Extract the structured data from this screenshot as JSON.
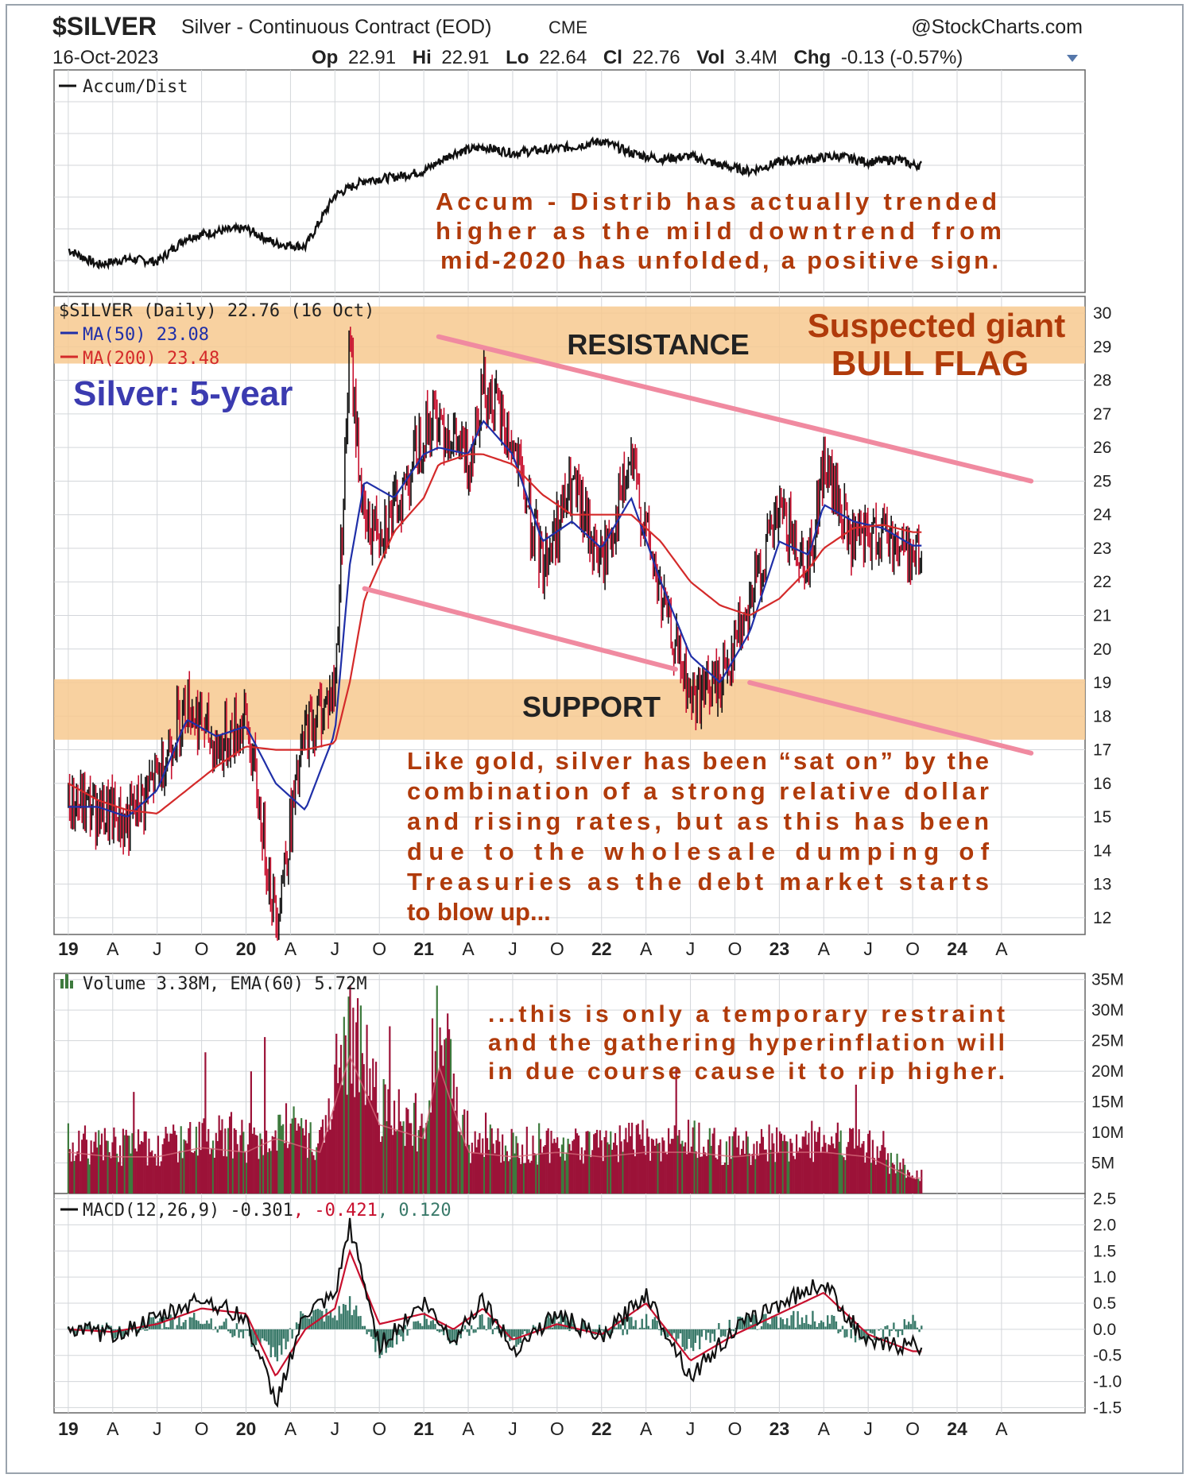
{
  "header": {
    "symbol": "$SILVER",
    "name": "Silver - Continuous Contract (EOD)",
    "exchange": "CME",
    "source": "@StockCharts.com",
    "date": "16-Oct-2023",
    "open_label": "Op",
    "open": "22.91",
    "high_label": "Hi",
    "high": "22.91",
    "low_label": "Lo",
    "low": "22.64",
    "close_label": "Cl",
    "close": "22.76",
    "vol_label": "Vol",
    "vol": "3.4M",
    "chg_label": "Chg",
    "chg": "-0.13 (-0.57%)"
  },
  "panels": {
    "ad_legend": "Accum/Dist",
    "price_legend": "$SILVER (Daily) 22.76 (16 Oct)",
    "ma50_legend": "MA(50) 23.08",
    "ma200_legend": "MA(200) 23.48",
    "volume_legend": "Volume 3.38M, EMA(60) 5.72M",
    "macd_legend_a": "MACD(12,26,9) -0.301",
    "macd_legend_b": ", -0.421",
    "macd_legend_c": ", 0.120"
  },
  "annotations": {
    "ad_note": [
      "Accum - Distrib has actually trended",
      "higher as the mild downtrend from",
      "mid-2020 has unfolded, a positive sign."
    ],
    "resistance": "RESISTANCE",
    "flag_1": "Suspected giant",
    "flag_2": "BULL FLAG",
    "title_5yr": "Silver: 5-year",
    "support": "SUPPORT",
    "gold_note": [
      "Like gold, silver has been “sat on” by the",
      "combination of a strong relative dollar",
      "and rising rates, but as this has been",
      "due to the wholesale dumping of",
      "Treasuries as the debt market starts",
      "to blow up..."
    ],
    "volume_note": [
      "...this is only a temporary restraint",
      "and the gathering hyperinflation will",
      "in due course cause it to rip higher."
    ]
  },
  "colors": {
    "price_up": "#111111",
    "price_down": "#c8102e",
    "ma50": "#1f2fa8",
    "ma200": "#d42a2a",
    "zone": "#f7c98f",
    "channel": "#f08aa0",
    "volume": "#9c1238",
    "volume_up": "#3d7a3d",
    "macd_hist": "#3a7a6a",
    "annotation": "#b03a0a",
    "title_blue": "#3b3bb0"
  },
  "chart_data": [
    {
      "type": "line",
      "name": "Accum/Dist",
      "title": "Accum/Dist",
      "x": [
        "2019-01",
        "2019-03",
        "2019-05",
        "2019-07",
        "2019-09",
        "2019-11",
        "2020-01",
        "2020-03",
        "2020-05",
        "2020-07",
        "2020-09",
        "2020-11",
        "2021-01",
        "2021-03",
        "2021-05",
        "2021-07",
        "2021-09",
        "2021-11",
        "2022-01",
        "2022-03",
        "2022-05",
        "2022-07",
        "2022-09",
        "2022-11",
        "2023-01",
        "2023-03",
        "2023-05",
        "2023-07",
        "2023-09",
        "2023-10"
      ],
      "values": [
        22,
        12,
        16,
        14,
        30,
        34,
        36,
        26,
        24,
        58,
        68,
        70,
        74,
        86,
        90,
        86,
        88,
        90,
        94,
        86,
        82,
        84,
        78,
        74,
        80,
        82,
        84,
        80,
        82,
        78
      ],
      "scale": "relative 0-100 (no axis printed)"
    },
    {
      "type": "line",
      "title": "$SILVER (Daily) 22.76 (16 Oct)",
      "x": [
        "2019-01",
        "2019-03",
        "2019-05",
        "2019-07",
        "2019-09",
        "2019-11",
        "2020-01",
        "2020-03",
        "2020-05",
        "2020-07",
        "2020-08",
        "2020-09",
        "2020-11",
        "2021-01",
        "2021-02",
        "2021-04",
        "2021-05",
        "2021-07",
        "2021-09",
        "2021-11",
        "2022-01",
        "2022-03",
        "2022-05",
        "2022-07",
        "2022-09",
        "2022-11",
        "2023-01",
        "2023-03",
        "2023-04",
        "2023-06",
        "2023-08",
        "2023-10"
      ],
      "series": [
        {
          "name": "$SILVER",
          "values": [
            15.5,
            15.2,
            14.8,
            16.2,
            18.5,
            17.0,
            17.9,
            12.0,
            17.5,
            18.8,
            29.0,
            23.5,
            24.0,
            26.5,
            27.0,
            25.5,
            28.0,
            26.0,
            22.5,
            24.8,
            22.5,
            25.5,
            21.5,
            18.5,
            19.0,
            21.5,
            24.0,
            22.5,
            25.5,
            23.0,
            23.5,
            22.8
          ]
        },
        {
          "name": "MA(50)",
          "values": [
            15.3,
            15.3,
            15.0,
            15.8,
            17.9,
            17.4,
            17.7,
            16.0,
            15.2,
            17.5,
            22.5,
            25.0,
            24.5,
            25.8,
            26.0,
            25.8,
            26.8,
            25.8,
            23.2,
            23.8,
            23.0,
            24.5,
            22.0,
            19.8,
            19.0,
            20.5,
            23.2,
            22.8,
            24.3,
            23.8,
            23.6,
            23.08
          ]
        },
        {
          "name": "MA(200)",
          "values": [
            16.0,
            15.5,
            15.2,
            15.1,
            15.8,
            16.5,
            17.1,
            17.0,
            17.0,
            17.2,
            19.0,
            21.5,
            23.5,
            24.5,
            25.5,
            25.8,
            25.8,
            25.5,
            24.6,
            24.0,
            24.0,
            24.0,
            23.2,
            22.0,
            21.3,
            21.0,
            21.5,
            22.4,
            23.0,
            23.6,
            23.7,
            23.48
          ]
        }
      ],
      "ylim": [
        11.5,
        30.5
      ],
      "yticks": [
        12,
        13,
        14,
        15,
        16,
        17,
        18,
        19,
        20,
        21,
        22,
        23,
        24,
        25,
        26,
        27,
        28,
        29,
        30
      ],
      "zones": [
        {
          "label": "RESISTANCE",
          "from": 28.5,
          "to": 30.2
        },
        {
          "label": "SUPPORT",
          "from": 17.3,
          "to": 19.1
        }
      ],
      "channel": [
        {
          "from": [
            "2021-02",
            29.3
          ],
          "to": [
            "2024-06",
            25.0
          ]
        },
        {
          "from": [
            "2020-09",
            21.8
          ],
          "to": [
            "2022-06",
            19.4
          ]
        },
        {
          "from": [
            "2022-11",
            19.0
          ],
          "to": [
            "2024-06",
            16.9
          ]
        }
      ]
    },
    {
      "type": "bar",
      "title": "Volume 3.38M, EMA(60) 5.72M",
      "x": [
        "2019-01",
        "2019-04",
        "2019-07",
        "2019-10",
        "2020-01",
        "2020-03",
        "2020-06",
        "2020-08",
        "2020-10",
        "2021-01",
        "2021-02",
        "2021-04",
        "2021-07",
        "2021-10",
        "2022-01",
        "2022-04",
        "2022-07",
        "2022-10",
        "2023-01",
        "2023-04",
        "2023-07",
        "2023-10"
      ],
      "values": [
        9,
        8,
        8,
        10,
        9,
        12,
        9,
        30,
        15,
        12,
        28,
        9,
        8,
        9,
        8,
        9,
        9,
        8,
        9,
        9,
        8,
        3.38
      ],
      "unit": "M",
      "ylim": [
        0,
        36
      ],
      "yticks_labels": [
        "35M",
        "30M",
        "25M",
        "20M",
        "15M",
        "10M",
        "5M"
      ],
      "ytick_values": [
        35,
        30,
        25,
        20,
        15,
        10,
        5
      ]
    },
    {
      "type": "line",
      "title": "MACD(12,26,9) -0.301, -0.421, 0.120",
      "x": [
        "2019-01",
        "2019-04",
        "2019-07",
        "2019-10",
        "2020-01",
        "2020-03",
        "2020-05",
        "2020-07",
        "2020-08",
        "2020-10",
        "2021-01",
        "2021-03",
        "2021-05",
        "2021-07",
        "2021-10",
        "2022-01",
        "2022-04",
        "2022-07",
        "2022-10",
        "2023-01",
        "2023-04",
        "2023-07",
        "2023-10"
      ],
      "series": [
        {
          "name": "MACD",
          "values": [
            0.0,
            -0.1,
            0.2,
            0.6,
            0.2,
            -1.4,
            0.3,
            0.6,
            2.0,
            -0.3,
            0.5,
            -0.2,
            0.6,
            -0.4,
            0.3,
            -0.2,
            0.7,
            -0.9,
            0.0,
            0.5,
            0.9,
            -0.3,
            -0.301
          ]
        },
        {
          "name": "Signal",
          "values": [
            0.0,
            -0.05,
            0.1,
            0.4,
            0.3,
            -0.9,
            0.0,
            0.4,
            1.5,
            0.1,
            0.3,
            0.0,
            0.4,
            -0.2,
            0.1,
            -0.1,
            0.5,
            -0.6,
            -0.1,
            0.3,
            0.7,
            -0.1,
            -0.421
          ]
        }
      ],
      "ylim": [
        -1.6,
        2.6
      ],
      "yticks": [
        2.5,
        2.0,
        1.5,
        1.0,
        0.5,
        0.0,
        -0.5,
        -1.0,
        -1.5
      ]
    }
  ],
  "time_axis": {
    "labels": [
      "19",
      "A",
      "J",
      "O",
      "20",
      "A",
      "J",
      "O",
      "21",
      "A",
      "J",
      "O",
      "22",
      "A",
      "J",
      "O",
      "23",
      "A",
      "J",
      "O",
      "24",
      "A"
    ]
  }
}
